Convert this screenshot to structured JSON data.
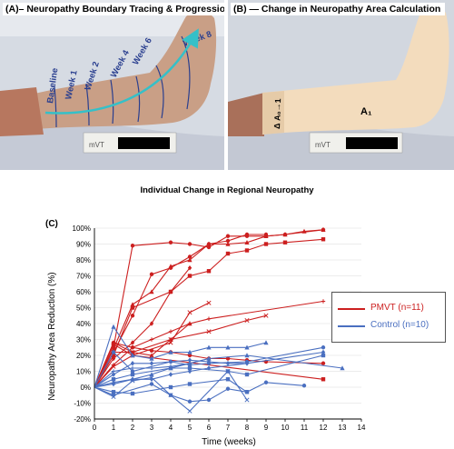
{
  "panel_a": {
    "title": "(A)– Neuropathy Boundary Tracing & Progression",
    "labels": [
      "Week 8",
      "Week 6",
      "Week 4",
      "Week 2",
      "Week 1",
      "Baseline"
    ],
    "ruler_text": "mVT"
  },
  "panel_b": {
    "title": "(B) — Change in Neuropathy Area Calculation",
    "label_a1": "A₁",
    "label_delta": "Δ A₀→1",
    "ruler_text": "mVT"
  },
  "colors": {
    "pmvt": "#cc1f1f",
    "control": "#4a6fc0",
    "tracing": "#2a3f8f",
    "arrow": "#35c0c8",
    "region": "#f3dcbd"
  },
  "chart_data": {
    "type": "line",
    "panel_label": "(C)",
    "title": "Individual Change in Regional Neuropathy",
    "xlabel": "Time (weeks)",
    "ylabel": "Neuropathy Area Reduction (%)",
    "xlim": [
      0,
      14
    ],
    "ylim": [
      -20,
      100
    ],
    "xticks": [
      "0",
      "1",
      "2",
      "3",
      "4",
      "5",
      "6",
      "7",
      "8",
      "9",
      "10",
      "11",
      "12",
      "13",
      "14"
    ],
    "yticks": [
      "-20%",
      "-10%",
      "0%",
      "10%",
      "20%",
      "30%",
      "40%",
      "50%",
      "60%",
      "70%",
      "80%",
      "90%",
      "100%"
    ],
    "legend": [
      {
        "name": "PMVT (n=11)",
        "group": "pmvt"
      },
      {
        "name": "Control (n=10)",
        "group": "control"
      }
    ],
    "series": [
      {
        "group": "pmvt",
        "marker": "circle",
        "x": [
          0,
          1,
          2,
          4,
          5,
          6,
          7,
          8,
          9,
          10,
          12
        ],
        "y": [
          0,
          25,
          89,
          91,
          90,
          88,
          95,
          95,
          95,
          96,
          99
        ]
      },
      {
        "group": "pmvt",
        "marker": "triangle",
        "x": [
          0,
          1,
          2,
          3,
          4,
          5,
          6,
          7,
          8,
          9,
          10,
          11,
          12
        ],
        "y": [
          0,
          24,
          52,
          60,
          76,
          80,
          90,
          90,
          91,
          95,
          96,
          98,
          99
        ]
      },
      {
        "group": "pmvt",
        "marker": "square",
        "x": [
          0,
          1,
          2,
          4,
          5,
          6,
          7,
          8,
          9,
          10,
          12
        ],
        "y": [
          0,
          20,
          50,
          60,
          70,
          73,
          84,
          86,
          90,
          91,
          93
        ]
      },
      {
        "group": "pmvt",
        "marker": "circle",
        "x": [
          0,
          1,
          2,
          3,
          4,
          5,
          6,
          7,
          8,
          9
        ],
        "y": [
          0,
          22,
          45,
          71,
          75,
          82,
          90,
          92,
          96,
          96
        ]
      },
      {
        "group": "pmvt",
        "marker": "diamond",
        "x": [
          0,
          1,
          2,
          3,
          4,
          5
        ],
        "y": [
          0,
          18,
          28,
          40,
          60,
          75
        ]
      },
      {
        "group": "pmvt",
        "marker": "plus",
        "x": [
          0,
          1,
          2,
          3,
          4,
          5,
          6,
          12
        ],
        "y": [
          0,
          14,
          25,
          30,
          35,
          40,
          43,
          54
        ]
      },
      {
        "group": "pmvt",
        "marker": "x",
        "x": [
          0,
          1,
          2,
          4,
          5,
          6
        ],
        "y": [
          0,
          13,
          20,
          28,
          47,
          53
        ]
      },
      {
        "group": "pmvt",
        "marker": "x",
        "x": [
          0,
          1,
          2,
          4,
          6,
          8,
          9
        ],
        "y": [
          0,
          22,
          22,
          30,
          35,
          42,
          45
        ]
      },
      {
        "group": "pmvt",
        "marker": "triangle",
        "x": [
          0,
          1,
          2,
          3,
          4,
          5
        ],
        "y": [
          0,
          28,
          22,
          20,
          30,
          40
        ]
      },
      {
        "group": "pmvt",
        "marker": "circle",
        "x": [
          0,
          1,
          2,
          3,
          4,
          5,
          6,
          7,
          8,
          9,
          12
        ],
        "y": [
          0,
          28,
          25,
          23,
          22,
          20,
          18,
          18,
          17,
          16,
          15
        ]
      },
      {
        "group": "pmvt",
        "marker": "square",
        "x": [
          0,
          1,
          2,
          12
        ],
        "y": [
          0,
          27,
          20,
          5
        ]
      },
      {
        "group": "control",
        "marker": "triangle",
        "x": [
          0,
          1,
          2,
          3,
          4,
          5,
          6,
          7,
          8,
          9
        ],
        "y": [
          0,
          38,
          20,
          18,
          22,
          22,
          25,
          25,
          25,
          28
        ]
      },
      {
        "group": "control",
        "marker": "circle",
        "x": [
          0,
          1,
          2,
          4,
          5,
          6,
          8,
          12
        ],
        "y": [
          0,
          22,
          10,
          16,
          14,
          15,
          16,
          25
        ]
      },
      {
        "group": "control",
        "marker": "square",
        "x": [
          0,
          1,
          2,
          4,
          5,
          7,
          8,
          12
        ],
        "y": [
          0,
          5,
          8,
          12,
          12,
          10,
          8,
          20
        ]
      },
      {
        "group": "control",
        "marker": "diamond",
        "x": [
          0,
          1,
          2,
          3,
          4,
          5,
          6,
          8,
          12
        ],
        "y": [
          0,
          2,
          5,
          5,
          8,
          10,
          12,
          15,
          22
        ]
      },
      {
        "group": "control",
        "marker": "triangle",
        "x": [
          0,
          1,
          2,
          3,
          4,
          5,
          6,
          8,
          13
        ],
        "y": [
          0,
          3,
          5,
          8,
          12,
          15,
          18,
          20,
          12
        ]
      },
      {
        "group": "control",
        "marker": "circle",
        "x": [
          0,
          1,
          3,
          4,
          5,
          6,
          7,
          8,
          9,
          11
        ],
        "y": [
          0,
          -5,
          2,
          -5,
          -9,
          -8,
          -1,
          -3,
          3,
          1
        ]
      },
      {
        "group": "control",
        "marker": "x",
        "x": [
          0,
          1,
          2,
          3,
          4,
          5,
          7,
          8
        ],
        "y": [
          0,
          -6,
          4,
          6,
          -5,
          -15,
          10,
          -8
        ]
      },
      {
        "group": "control",
        "marker": "plus",
        "x": [
          0,
          1,
          2,
          3,
          4,
          5,
          6
        ],
        "y": [
          0,
          10,
          12,
          12,
          13,
          15,
          18
        ]
      },
      {
        "group": "control",
        "marker": "square",
        "x": [
          0,
          1,
          2,
          4,
          5,
          7,
          8
        ],
        "y": [
          0,
          -3,
          -4,
          0,
          2,
          5,
          -3
        ]
      },
      {
        "group": "control",
        "marker": "diamond",
        "x": [
          0,
          1,
          2,
          3,
          4,
          5,
          6,
          7,
          8
        ],
        "y": [
          0,
          8,
          15,
          15,
          16,
          17,
          16,
          15,
          15
        ]
      }
    ]
  }
}
